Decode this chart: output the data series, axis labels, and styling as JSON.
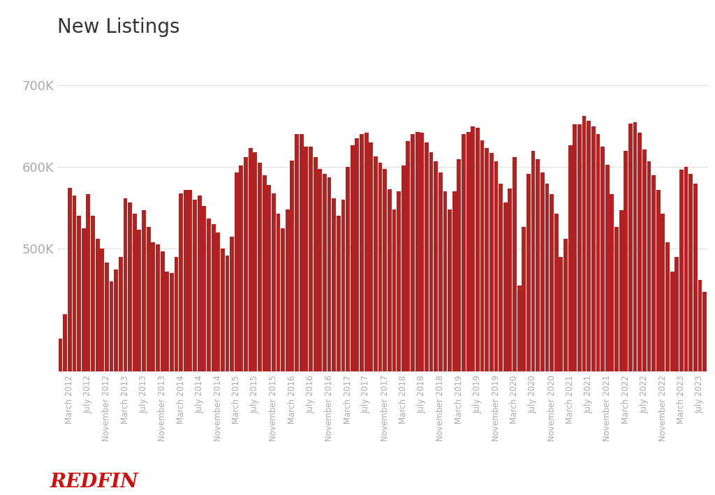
{
  "title": "New Listings",
  "bar_color": "#b22222",
  "background_color": "#ffffff",
  "yticks": [
    500000,
    600000,
    700000
  ],
  "ytick_labels": [
    "500K",
    "600K",
    "700K"
  ],
  "ylim": [
    350000,
    750000
  ],
  "title_fontsize": 20,
  "tick_label_color": "#aaaaaa",
  "redfin_text": "REDFIN",
  "monthly_values": [
    390000,
    420000,
    575000,
    565000,
    540000,
    525000,
    567000,
    540000,
    512000,
    500000,
    483000,
    460000,
    475000,
    490000,
    562000,
    557000,
    543000,
    523000,
    547000,
    527000,
    508000,
    505000,
    497000,
    472000,
    470000,
    490000,
    568000,
    572000,
    572000,
    560000,
    565000,
    552000,
    537000,
    530000,
    520000,
    500000,
    492000,
    515000,
    593000,
    602000,
    612000,
    623000,
    618000,
    605000,
    590000,
    578000,
    568000,
    543000,
    525000,
    548000,
    608000,
    640000,
    640000,
    625000,
    625000,
    612000,
    598000,
    592000,
    587000,
    562000,
    540000,
    560000,
    600000,
    627000,
    635000,
    640000,
    642000,
    630000,
    613000,
    605000,
    598000,
    573000,
    548000,
    570000,
    602000,
    632000,
    640000,
    643000,
    642000,
    630000,
    618000,
    607000,
    593000,
    570000,
    548000,
    570000,
    610000,
    640000,
    643000,
    650000,
    648000,
    633000,
    623000,
    617000,
    607000,
    580000,
    557000,
    574000,
    612000,
    455000,
    527000,
    592000,
    620000,
    610000,
    593000,
    580000,
    567000,
    543000,
    490000,
    512000,
    627000,
    652000,
    652000,
    663000,
    657000,
    650000,
    640000,
    625000,
    603000,
    567000,
    527000,
    547000,
    620000,
    653000,
    655000,
    642000,
    622000,
    607000,
    590000,
    572000,
    543000,
    508000,
    472000,
    490000,
    597000,
    600000,
    592000,
    580000,
    462000,
    447000
  ],
  "xtick_positions_labels": [
    [
      2,
      "March 2012"
    ],
    [
      6,
      "July 2012"
    ],
    [
      10,
      "November 2012"
    ],
    [
      14,
      "March 2013"
    ],
    [
      18,
      "July 2013"
    ],
    [
      22,
      "November 2013"
    ],
    [
      26,
      "March 2014"
    ],
    [
      30,
      "July 2014"
    ],
    [
      34,
      "November 2014"
    ],
    [
      38,
      "March 2015"
    ],
    [
      42,
      "July 2015"
    ],
    [
      46,
      "November 2015"
    ],
    [
      50,
      "March 2016"
    ],
    [
      54,
      "July 2016"
    ],
    [
      58,
      "November 2016"
    ],
    [
      62,
      "March 2017"
    ],
    [
      66,
      "July 2017"
    ],
    [
      70,
      "November 2017"
    ],
    [
      74,
      "March 2018"
    ],
    [
      78,
      "July 2018"
    ],
    [
      82,
      "November 2018"
    ],
    [
      86,
      "March 2019"
    ],
    [
      90,
      "July 2019"
    ],
    [
      94,
      "November 2019"
    ],
    [
      98,
      "March 2020"
    ],
    [
      102,
      "July 2020"
    ],
    [
      106,
      "November 2020"
    ],
    [
      110,
      "March 2021"
    ],
    [
      114,
      "July 2021"
    ],
    [
      118,
      "November 2021"
    ],
    [
      122,
      "March 2022"
    ],
    [
      126,
      "July 2022"
    ],
    [
      130,
      "November 2022"
    ],
    [
      134,
      "March 2023"
    ],
    [
      138,
      "July 2023"
    ]
  ]
}
